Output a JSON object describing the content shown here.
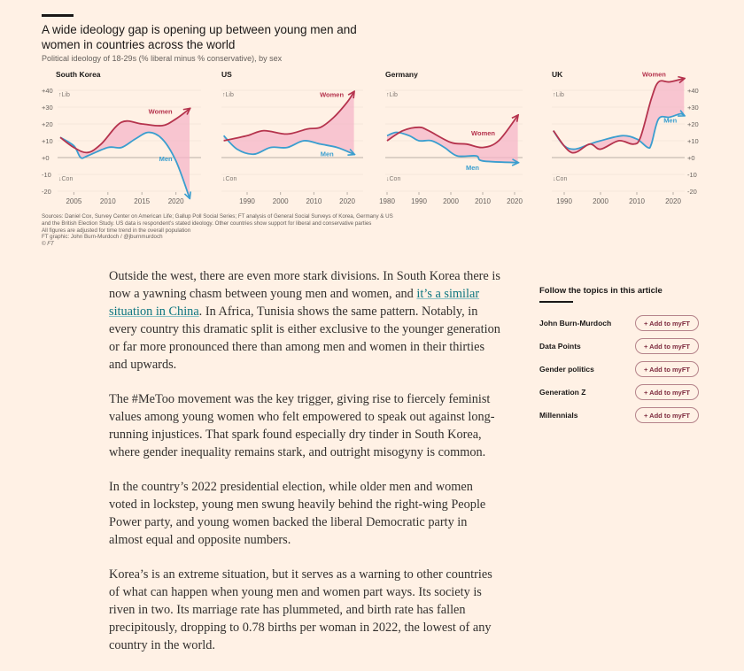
{
  "chart_data": {
    "type": "line",
    "title": "A wide ideology gap is opening up between young men and women in countries across the world",
    "subtitle": "Political ideology of 18-29s (% liberal minus % conservative), by sex",
    "ylabel_top": "↑Lib",
    "ylabel_bottom": "↓Con",
    "ylim": [
      -20,
      40
    ],
    "yticks": [
      "+40",
      "+30",
      "+20",
      "+10",
      "+0",
      "-10",
      "-20"
    ],
    "ytick_values": [
      40,
      30,
      20,
      10,
      0,
      -10,
      -20
    ],
    "colors": {
      "women": "#b5334d",
      "men": "#3a9ecf",
      "gap": "#f6b6c8"
    },
    "panels": [
      {
        "name": "South Korea",
        "xlim": [
          2003,
          2022
        ],
        "xticks": [
          2005,
          2010,
          2015,
          2020
        ],
        "women_label": "Women",
        "men_label": "Men",
        "women": [
          [
            2003,
            12
          ],
          [
            2005,
            6
          ],
          [
            2007,
            3
          ],
          [
            2009,
            8
          ],
          [
            2012,
            21
          ],
          [
            2015,
            20
          ],
          [
            2018,
            19
          ],
          [
            2020,
            23
          ],
          [
            2022,
            29
          ]
        ],
        "men": [
          [
            2003,
            12
          ],
          [
            2005,
            7
          ],
          [
            2006,
            0
          ],
          [
            2007,
            1
          ],
          [
            2010,
            6
          ],
          [
            2012,
            6
          ],
          [
            2014,
            11
          ],
          [
            2016,
            15
          ],
          [
            2018,
            11
          ],
          [
            2020,
            -2
          ],
          [
            2022,
            -24
          ]
        ]
      },
      {
        "name": "US",
        "xlim": [
          1983,
          2022
        ],
        "xticks": [
          1990,
          2000,
          2010,
          2020
        ],
        "women_label": "Women",
        "men_label": "Men",
        "women": [
          [
            1983,
            10
          ],
          [
            1990,
            13
          ],
          [
            1995,
            16
          ],
          [
            2002,
            14
          ],
          [
            2008,
            17
          ],
          [
            2012,
            18
          ],
          [
            2016,
            24
          ],
          [
            2020,
            33
          ],
          [
            2022,
            39
          ]
        ],
        "men": [
          [
            1983,
            13
          ],
          [
            1987,
            5
          ],
          [
            1992,
            2
          ],
          [
            1997,
            6
          ],
          [
            2002,
            6
          ],
          [
            2007,
            10
          ],
          [
            2012,
            8
          ],
          [
            2017,
            6
          ],
          [
            2022,
            2
          ]
        ]
      },
      {
        "name": "Germany",
        "xlim": [
          1980,
          2021
        ],
        "xticks": [
          1980,
          1990,
          2000,
          2010,
          2020
        ],
        "women_label": "Women",
        "men_label": "Men",
        "women": [
          [
            1980,
            10
          ],
          [
            1985,
            16
          ],
          [
            1990,
            18
          ],
          [
            1993,
            16
          ],
          [
            2000,
            9
          ],
          [
            2005,
            8
          ],
          [
            2010,
            6
          ],
          [
            2015,
            10
          ],
          [
            2021,
            25
          ]
        ],
        "men": [
          [
            1980,
            13
          ],
          [
            1983,
            15
          ],
          [
            1987,
            13
          ],
          [
            1990,
            10
          ],
          [
            1994,
            10
          ],
          [
            1998,
            6
          ],
          [
            2002,
            1
          ],
          [
            2008,
            1
          ],
          [
            2010,
            -2
          ],
          [
            2021,
            -3
          ]
        ]
      },
      {
        "name": "UK",
        "xlim": [
          1987,
          2023
        ],
        "xticks": [
          1990,
          2000,
          2010,
          2020
        ],
        "women_label": "Women",
        "men_label": "Men",
        "women": [
          [
            1987,
            16
          ],
          [
            1992,
            3
          ],
          [
            1997,
            8
          ],
          [
            2000,
            5
          ],
          [
            2005,
            10
          ],
          [
            2009,
            8
          ],
          [
            2011,
            12
          ],
          [
            2014,
            35
          ],
          [
            2016,
            45
          ],
          [
            2019,
            45
          ],
          [
            2023,
            47
          ]
        ],
        "men": [
          [
            1987,
            16
          ],
          [
            1990,
            7
          ],
          [
            1993,
            5
          ],
          [
            1997,
            8
          ],
          [
            2000,
            10
          ],
          [
            2006,
            13
          ],
          [
            2010,
            11
          ],
          [
            2013,
            6
          ],
          [
            2014,
            8
          ],
          [
            2016,
            23
          ],
          [
            2019,
            24
          ],
          [
            2022,
            26
          ],
          [
            2023,
            25
          ]
        ]
      }
    ],
    "sources": [
      "Sources: Daniel Cox, Survey Center on American Life; Gallup Poll Social Series; FT analysis of General Social Surveys of Korea, Germany & US",
      "and the British Election Study. US data is respondent's stated ideology. Other countries show support for liberal and conservative parties",
      "All figures are adjusted for time trend in the overall population",
      "FT graphic: John Burn-Murdoch / @jburnmurdoch",
      "© FT"
    ]
  },
  "article": {
    "p1_before": "Outside the west, there are even more stark divisions. In South Korea there is now a yawning chasm between young men and women, and ",
    "p1_link": "it’s a similar situation in China",
    "p1_after": ". In Africa, Tunisia shows the same pattern. Notably, in every country this dramatic split is either exclusive to the younger generation or far more pronounced there than among men and women in their thirties and upwards.",
    "p2": "The #MeToo movement was the key trigger, giving rise to fiercely feminist values among young women who felt empowered to speak out against long-running injustices. That spark found especially dry tinder in South Korea, where gender inequality remains stark, and outright misogyny is common.",
    "p3": "In the country’s 2022 presidential election, while older men and women voted in lockstep, young men swung heavily behind the right-wing People Power party, and young women backed the liberal Democratic party in almost equal and opposite numbers.",
    "p4": "Korea’s is an extreme situation, but it serves as a warning to other countries of what can happen when young men and women part ways. Its society is riven in two. Its marriage rate has plummeted, and birth rate has fallen precipitously, dropping to 0.78 births per woman in 2022, the lowest of any country in the world."
  },
  "topics": {
    "heading": "Follow the topics in this article",
    "button_label": "+ Add to myFT",
    "items": [
      "John Burn-Murdoch",
      "Data Points",
      "Gender politics",
      "Generation Z",
      "Millennials"
    ]
  }
}
